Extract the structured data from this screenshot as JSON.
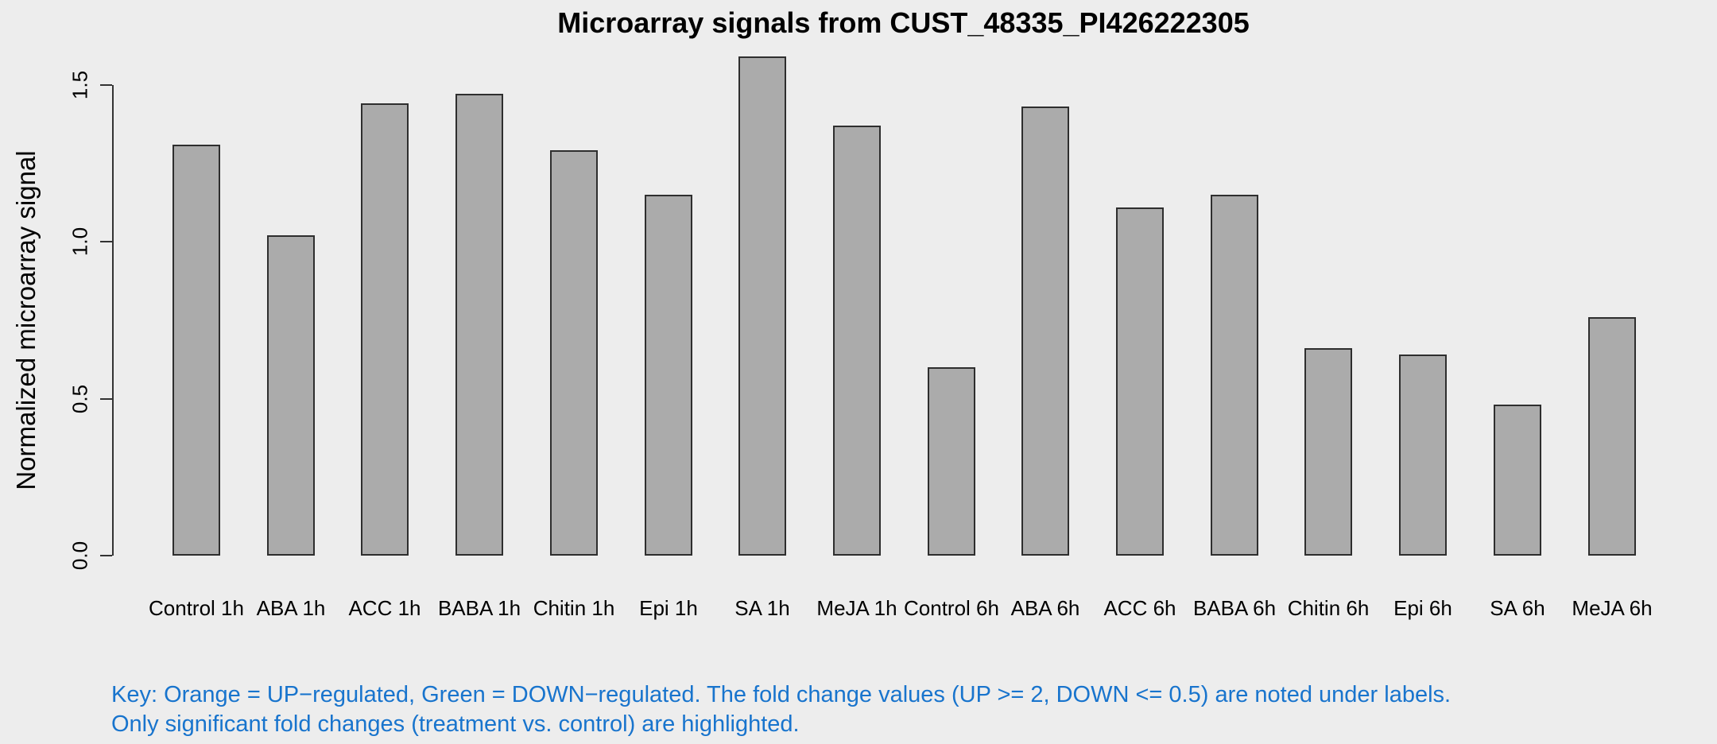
{
  "chart_data": {
    "type": "bar",
    "title": "Microarray signals from CUST_48335_PI426222305",
    "xlabel": "",
    "ylabel": "Normalized microarray signal",
    "categories": [
      "Control 1h",
      "ABA 1h",
      "ACC 1h",
      "BABA 1h",
      "Chitin 1h",
      "Epi 1h",
      "SA 1h",
      "MeJA 1h",
      "Control 6h",
      "ABA 6h",
      "ACC 6h",
      "BABA 6h",
      "Chitin 6h",
      "Epi 6h",
      "SA 6h",
      "MeJA 6h"
    ],
    "values": [
      1.31,
      1.02,
      1.44,
      1.47,
      1.29,
      1.15,
      1.59,
      1.37,
      0.6,
      1.43,
      1.11,
      1.15,
      0.66,
      0.64,
      0.48,
      0.76
    ],
    "yticks": [
      {
        "label": "0.0",
        "value": 0.0
      },
      {
        "label": "0.5",
        "value": 0.5
      },
      {
        "label": "1.0",
        "value": 1.0
      },
      {
        "label": "1.5",
        "value": 1.5
      }
    ],
    "ylim": [
      0,
      1.6
    ],
    "grid": false,
    "legend": null,
    "colors": {
      "background": "#EDEDED",
      "bar_fill": "#ABABAB",
      "bar_border": "#2E2E2E",
      "axis": "#333333",
      "footer_text": "#1874CD"
    }
  },
  "footer": {
    "line1": "Key: Orange = UP−regulated, Green = DOWN−regulated. The fold change values (UP >= 2, DOWN <= 0.5) are noted under labels.",
    "line2": "Only significant fold changes (treatment vs. control) are highlighted."
  }
}
